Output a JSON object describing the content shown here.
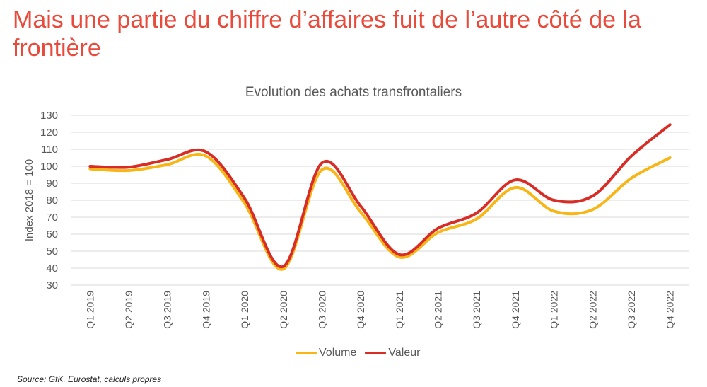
{
  "headline": "Mais une partie du chiffre d’affaires fuit de l’autre côté de la frontière",
  "source": "Source: GfK, Eurostat, calculs propres",
  "colors": {
    "headline": "#e84a3b",
    "volume": "#f7b516",
    "valeur": "#d82d27",
    "grid": "#d9d9d9",
    "text": "#595959"
  },
  "chart_data": {
    "type": "line",
    "title": "Evolution des achats transfrontaliers",
    "xlabel": "",
    "ylabel": "Index 2018 = 100",
    "ylim": [
      30,
      130
    ],
    "yticks": [
      30,
      40,
      50,
      60,
      70,
      80,
      90,
      100,
      110,
      120,
      130
    ],
    "grid": true,
    "legend_position": "bottom",
    "categories": [
      "Q1 2019",
      "Q2 2019",
      "Q3 2019",
      "Q4 2019",
      "Q1 2020",
      "Q2 2020",
      "Q3 2020",
      "Q4 2020",
      "Q1 2021",
      "Q2 2021",
      "Q3 2021",
      "Q4 2021",
      "Q1 2022",
      "Q2 2022",
      "Q3 2022",
      "Q4 2022"
    ],
    "series": [
      {
        "name": "Volume",
        "color": "#f7b516",
        "values": [
          98.5,
          97.5,
          101,
          106,
          78,
          39.5,
          98,
          73,
          46.5,
          61,
          69,
          87.5,
          73.5,
          74.5,
          93,
          105
        ]
      },
      {
        "name": "Valeur",
        "color": "#d82d27",
        "values": [
          100,
          99.5,
          104,
          108.5,
          81,
          41,
          102,
          76.5,
          48,
          63.5,
          72.5,
          92,
          80,
          82.5,
          106,
          124.5
        ]
      }
    ]
  }
}
